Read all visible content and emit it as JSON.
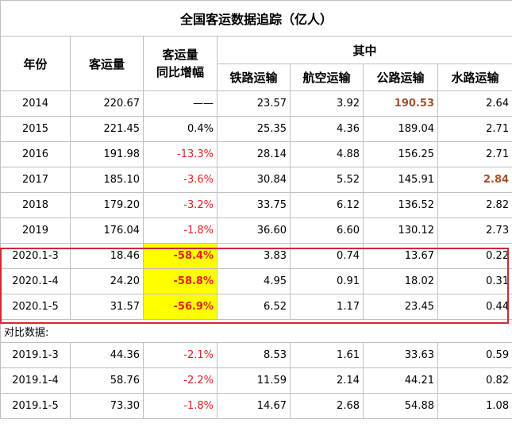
{
  "title": "全国客运数据追踪（亿人）",
  "headers": {
    "year": "年份",
    "volume": "客运量",
    "yoy_line1": "客运量",
    "yoy_line2": "同比增幅",
    "group": "其中",
    "rail": "铁路运输",
    "air": "航空运输",
    "road": "公路运输",
    "water": "水路运输"
  },
  "rows": [
    {
      "year": "2014",
      "volume": "220.67",
      "yoy": "——",
      "rail": "23.57",
      "air": "3.92",
      "road": "190.53",
      "water": "2.64"
    },
    {
      "year": "2015",
      "volume": "221.45",
      "yoy": "0.4%",
      "rail": "25.35",
      "air": "4.36",
      "road": "189.04",
      "water": "2.71"
    },
    {
      "year": "2016",
      "volume": "191.98",
      "yoy": "-13.3%",
      "rail": "28.14",
      "air": "4.88",
      "road": "156.25",
      "water": "2.71"
    },
    {
      "year": "2017",
      "volume": "185.10",
      "yoy": "-3.6%",
      "rail": "30.84",
      "air": "5.52",
      "road": "145.91",
      "water": "2.84"
    },
    {
      "year": "2018",
      "volume": "179.20",
      "yoy": "-3.2%",
      "rail": "33.75",
      "air": "6.12",
      "road": "136.52",
      "water": "2.82"
    },
    {
      "year": "2019",
      "volume": "176.04",
      "yoy": "-1.8%",
      "rail": "36.60",
      "air": "6.60",
      "road": "130.12",
      "water": "2.73"
    },
    {
      "year": "2020.1-3",
      "volume": "18.46",
      "yoy": "-58.4%",
      "rail": "3.83",
      "air": "0.74",
      "road": "13.67",
      "water": "0.22"
    },
    {
      "year": "2020.1-4",
      "volume": "24.20",
      "yoy": "-58.8%",
      "rail": "4.95",
      "air": "0.91",
      "road": "18.02",
      "water": "0.31"
    },
    {
      "year": "2020.1-5",
      "volume": "31.57",
      "yoy": "-56.9%",
      "rail": "6.52",
      "air": "1.17",
      "road": "23.45",
      "water": "0.44"
    }
  ],
  "comparison_label": "对比数据:",
  "comparison_rows": [
    {
      "year": "2019.1-3",
      "volume": "44.36",
      "yoy": "-2.1%",
      "rail": "8.53",
      "air": "1.61",
      "road": "33.63",
      "water": "0.59"
    },
    {
      "year": "2019.1-4",
      "volume": "58.76",
      "yoy": "-2.2%",
      "rail": "11.59",
      "air": "2.14",
      "road": "44.21",
      "water": "0.82"
    },
    {
      "year": "2019.1-5",
      "volume": "73.30",
      "yoy": "-1.8%",
      "rail": "14.67",
      "air": "2.68",
      "road": "54.88",
      "water": "1.08"
    }
  ],
  "colors": {
    "negative": "#e02020",
    "highlight": "#a0522d",
    "yellow_fill": "#ffff00",
    "box_border": "#cc2a36"
  }
}
